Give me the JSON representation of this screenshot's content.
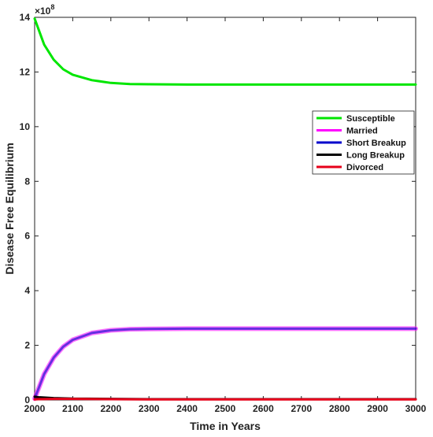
{
  "chart_data": {
    "type": "line",
    "xlabel": "Time in Years",
    "ylabel": "Disease Free Equilibrium",
    "y_exponent_label": "×10",
    "y_exponent_power": "8",
    "y_scale": 100000000,
    "xlim": [
      2000,
      3000
    ],
    "ylim": [
      0,
      14
    ],
    "x_ticks": [
      2000,
      2100,
      2200,
      2300,
      2400,
      2500,
      2600,
      2700,
      2800,
      2900,
      3000
    ],
    "y_ticks": [
      0,
      2,
      4,
      6,
      8,
      10,
      12,
      14
    ],
    "grid": false,
    "legend_position": "right",
    "series": [
      {
        "name": "Susceptible",
        "color": "#00e600",
        "x": [
          2000,
          2025,
          2050,
          2075,
          2100,
          2150,
          2200,
          2250,
          2300,
          2400,
          2500,
          2600,
          2700,
          2800,
          2900,
          3000
        ],
        "y": [
          13.95,
          13.0,
          12.45,
          12.1,
          11.9,
          11.7,
          11.6,
          11.56,
          11.55,
          11.54,
          11.54,
          11.54,
          11.54,
          11.54,
          11.54,
          11.54
        ]
      },
      {
        "name": "Married",
        "color": "#ff00ff",
        "x": [
          2000,
          2025,
          2050,
          2075,
          2100,
          2150,
          2200,
          2250,
          2300,
          2400,
          2500,
          2600,
          2700,
          2800,
          2900,
          3000
        ],
        "y": [
          0.05,
          0.95,
          1.55,
          1.95,
          2.2,
          2.45,
          2.55,
          2.59,
          2.6,
          2.61,
          2.61,
          2.61,
          2.61,
          2.61,
          2.61,
          2.61
        ]
      },
      {
        "name": "Short Breakup",
        "color": "#0000cc",
        "x": [
          2000,
          2025,
          2050,
          2075,
          2100,
          2150,
          2200,
          2250,
          2300,
          2400,
          2500,
          2600,
          2700,
          2800,
          2900,
          3000
        ],
        "y": [
          0.05,
          0.95,
          1.55,
          1.95,
          2.2,
          2.45,
          2.55,
          2.59,
          2.6,
          2.61,
          2.61,
          2.61,
          2.61,
          2.61,
          2.61,
          2.61
        ]
      },
      {
        "name": "Long Breakup",
        "color": "#000000",
        "x": [
          2000,
          2010,
          2050,
          2100,
          2200,
          2300,
          2500,
          3000
        ],
        "y": [
          0.12,
          0.1,
          0.07,
          0.05,
          0.04,
          0.03,
          0.03,
          0.03
        ]
      },
      {
        "name": "Divorced",
        "color": "#e6001a",
        "x": [
          2000,
          2010,
          2050,
          2100,
          2200,
          2300,
          2500,
          3000
        ],
        "y": [
          0.02,
          0.03,
          0.04,
          0.04,
          0.03,
          0.02,
          0.02,
          0.02
        ]
      }
    ]
  }
}
